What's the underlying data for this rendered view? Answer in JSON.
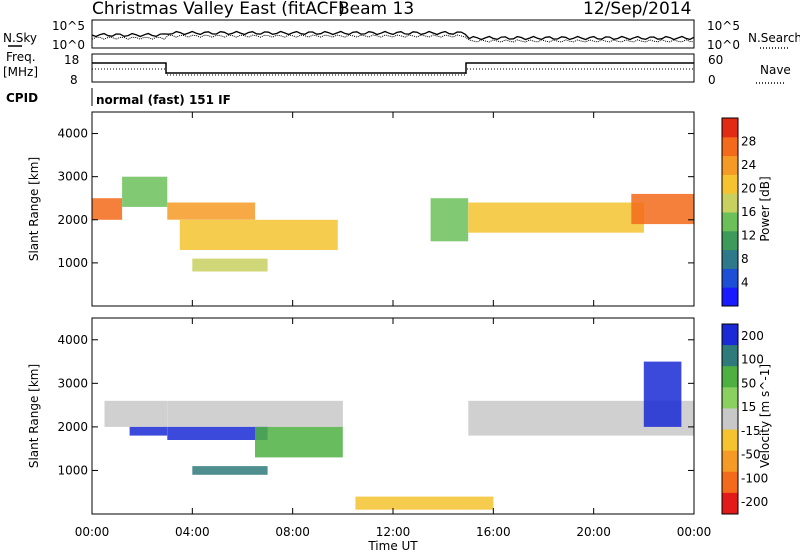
{
  "header": {
    "station": "Christmas Valley East (fitACF)",
    "beam": "Beam 13",
    "date": "12/Sep/2014"
  },
  "noise_panel": {
    "left_label": "N.Sky",
    "right_label": "N.Search",
    "left_ticks": [
      "10^5",
      "10^0"
    ],
    "right_ticks": [
      "10^5",
      "10^0"
    ]
  },
  "freq_panel": {
    "left_label_line1": "Freq.",
    "left_label_line2": "[MHz]",
    "right_label": "Nave",
    "left_ticks": [
      "18",
      "8"
    ],
    "right_ticks": [
      "60",
      "0"
    ]
  },
  "cpid": {
    "label": "CPID",
    "value": "normal (fast) 151 IF"
  },
  "time_axis": {
    "label": "Time UT",
    "ticks": [
      "00:00",
      "04:00",
      "08:00",
      "12:00",
      "16:00",
      "20:00",
      "00:00"
    ]
  },
  "colors": {
    "power": [
      "#1a1aff",
      "#1c4fd6",
      "#2f7a8a",
      "#3d9a5a",
      "#6cc05a",
      "#c8d060",
      "#f4c330",
      "#f59a25",
      "#f26a1a",
      "#e22a14"
    ],
    "velocity_neg": [
      "#e21a1a",
      "#f26a1a",
      "#f59a25",
      "#f4c330"
    ],
    "velocity_zero": "#c8c8c8",
    "velocity_pos": [
      "#8ad060",
      "#4fb042",
      "#2f7a7a",
      "#1a2ad6"
    ]
  },
  "chart_data": [
    {
      "type": "heatmap",
      "title": "",
      "xlabel": "Time UT",
      "ylabel": "Slant Range [km]",
      "yticks": [
        "1000",
        "2000",
        "3000",
        "4000"
      ],
      "ylim": [
        0,
        4500
      ],
      "colorbar_label": "Power [dB]",
      "colorbar_ticks": [
        "4",
        "8",
        "12",
        "16",
        "20",
        "24",
        "28"
      ],
      "colorbar_range": [
        0,
        32
      ],
      "features": [
        {
          "t_start": 0.0,
          "t_end": 1.2,
          "r_start": 2000,
          "r_end": 2500,
          "value": 26
        },
        {
          "t_start": 1.2,
          "t_end": 3.0,
          "r_start": 2300,
          "r_end": 3000,
          "value": 14
        },
        {
          "t_start": 3.0,
          "t_end": 6.5,
          "r_start": 2000,
          "r_end": 2400,
          "value": 24
        },
        {
          "t_start": 3.5,
          "t_end": 9.8,
          "r_start": 1300,
          "r_end": 2000,
          "value": 22
        },
        {
          "t_start": 4.0,
          "t_end": 7.0,
          "r_start": 800,
          "r_end": 1100,
          "value": 18
        },
        {
          "t_start": 13.5,
          "t_end": 15.0,
          "r_start": 1500,
          "r_end": 2500,
          "value": 14
        },
        {
          "t_start": 15.0,
          "t_end": 22.0,
          "r_start": 1700,
          "r_end": 2400,
          "value": 20
        },
        {
          "t_start": 21.5,
          "t_end": 24.0,
          "r_start": 1900,
          "r_end": 2600,
          "value": 26
        }
      ]
    },
    {
      "type": "heatmap",
      "title": "",
      "xlabel": "Time UT",
      "ylabel": "Slant Range [km]",
      "yticks": [
        "1000",
        "2000",
        "3000",
        "4000"
      ],
      "ylim": [
        0,
        4500
      ],
      "colorbar_label": "Velocity [m s^-1]",
      "colorbar_ticks": [
        "200",
        "100",
        "50",
        "15",
        "-15",
        "-50",
        "-100",
        "-200"
      ],
      "colorbar_range": [
        -250,
        250
      ],
      "features": [
        {
          "t_start": 0.5,
          "t_end": 3.0,
          "r_start": 2000,
          "r_end": 2600,
          "value": 0
        },
        {
          "t_start": 1.5,
          "t_end": 3.0,
          "r_start": 1800,
          "r_end": 2000,
          "value": 200
        },
        {
          "t_start": 3.0,
          "t_end": 10.0,
          "r_start": 2000,
          "r_end": 2600,
          "value": 0
        },
        {
          "t_start": 3.0,
          "t_end": 7.0,
          "r_start": 1700,
          "r_end": 2000,
          "value": 200
        },
        {
          "t_start": 6.5,
          "t_end": 10.0,
          "r_start": 1300,
          "r_end": 2000,
          "value": 40
        },
        {
          "t_start": 4.0,
          "t_end": 7.0,
          "r_start": 900,
          "r_end": 1100,
          "value": 100
        },
        {
          "t_start": 10.5,
          "t_end": 16.0,
          "r_start": 100,
          "r_end": 400,
          "value": -40
        },
        {
          "t_start": 15.0,
          "t_end": 24.0,
          "r_start": 1800,
          "r_end": 2600,
          "value": 0
        },
        {
          "t_start": 22.0,
          "t_end": 23.5,
          "r_start": 2000,
          "r_end": 3500,
          "value": 200
        }
      ]
    }
  ]
}
